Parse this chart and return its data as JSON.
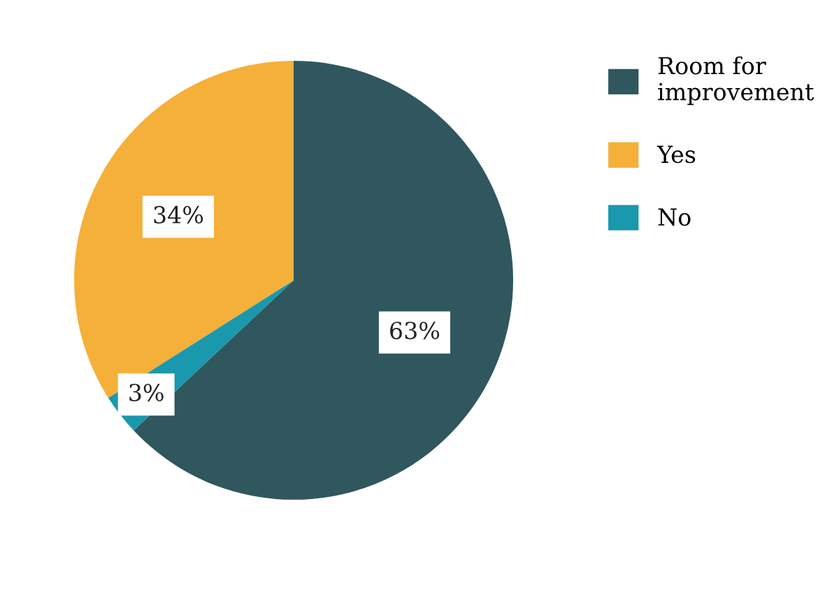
{
  "chart_data": {
    "type": "pie",
    "categories": [
      "Room for\nimprovement",
      "Yes",
      "No"
    ],
    "values": [
      63,
      34,
      3
    ],
    "colors": [
      "#2f575d",
      "#f5b03a",
      "#1a98ad"
    ],
    "value_labels": [
      "63%",
      "34%",
      "3%"
    ],
    "legend": "right"
  }
}
